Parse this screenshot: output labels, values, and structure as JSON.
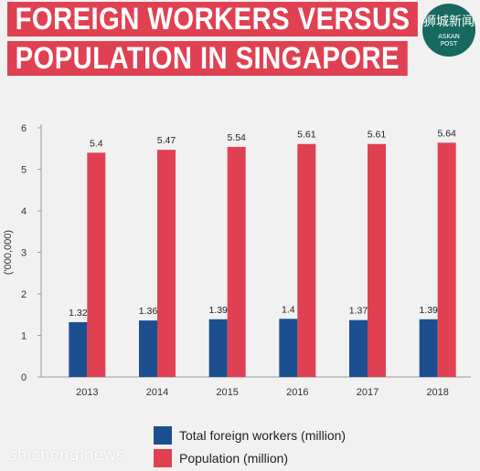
{
  "title": {
    "line1": "FOREIGN WORKERS VERSUS",
    "line2": "POPULATION IN SINGAPORE"
  },
  "logo": {
    "text_cn": "狮城新闻",
    "text_en_1": "ASKAN",
    "text_en_2": "POST"
  },
  "watermark": "shicheng news",
  "colors": {
    "title_band": "#e04152",
    "workers": "#1c4f8f",
    "population": "#e04152",
    "logo": "#17695f"
  },
  "chart_data": {
    "type": "bar",
    "categories": [
      "2013",
      "2014",
      "2015",
      "2016",
      "2017",
      "2018"
    ],
    "series": [
      {
        "name": "Total foreign workers (million)",
        "values": [
          1.32,
          1.36,
          1.39,
          1.4,
          1.37,
          1.39
        ],
        "labels": [
          "1.32",
          "1.36",
          "1.39",
          "1.4",
          "1.37",
          "1.39"
        ]
      },
      {
        "name": "Population (million)",
        "values": [
          5.4,
          5.47,
          5.54,
          5.61,
          5.61,
          5.64
        ],
        "labels": [
          "5.4",
          "5.47",
          "5.54",
          "5.61",
          "5.61",
          "5.64"
        ]
      }
    ],
    "ylabel": "('000,000)",
    "xlabel": "",
    "ylim": [
      0,
      6
    ],
    "yticks": [
      "0",
      "1",
      "2",
      "3",
      "4",
      "5",
      "6"
    ],
    "grid": false,
    "legend": "bottom"
  }
}
